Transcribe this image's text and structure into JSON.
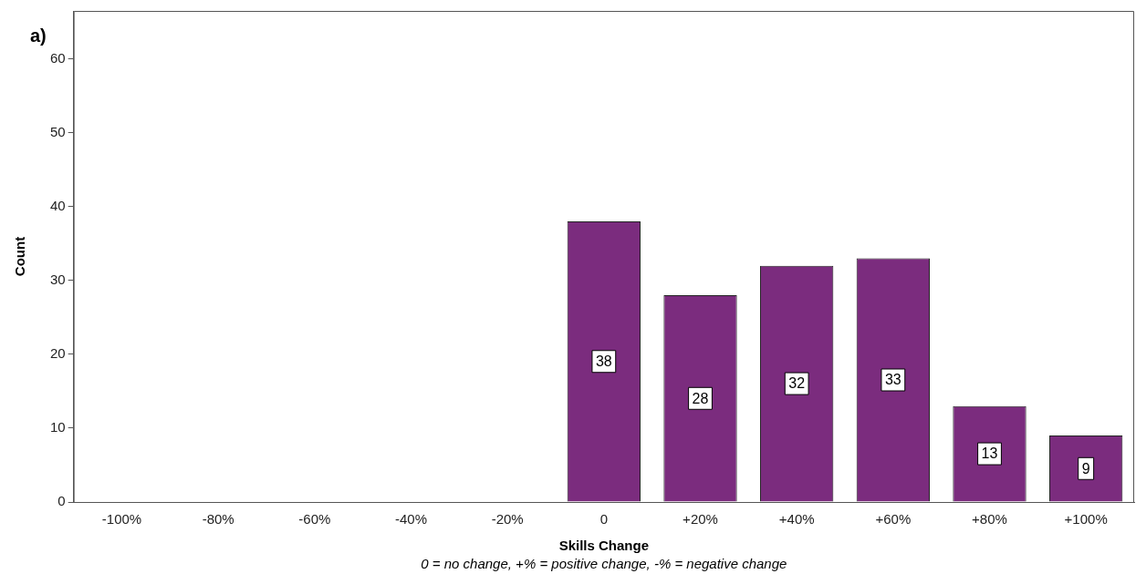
{
  "chart_data": {
    "type": "bar",
    "xlabel": "Skills Change",
    "ylabel": "Count",
    "categories": [
      "-100%",
      "-80%",
      "-60%",
      "-40%",
      "-20%",
      "0",
      "+20%",
      "+40%",
      "+60%",
      "+80%",
      "+100%"
    ],
    "values": [
      0,
      0,
      0,
      0,
      0,
      38,
      28,
      32,
      33,
      13,
      9
    ],
    "value_labels": [
      null,
      null,
      null,
      null,
      null,
      "38",
      "28",
      "32",
      "33",
      "13",
      "9"
    ],
    "color": "#7b2c7e",
    "ylim": [
      0,
      66.5
    ],
    "yticks": [
      0,
      10,
      20,
      30,
      40,
      50,
      60
    ],
    "grid": false,
    "legend": false,
    "annotations": [
      "a)",
      "0 = no change, +% = positive change, -% = negative change"
    ]
  }
}
